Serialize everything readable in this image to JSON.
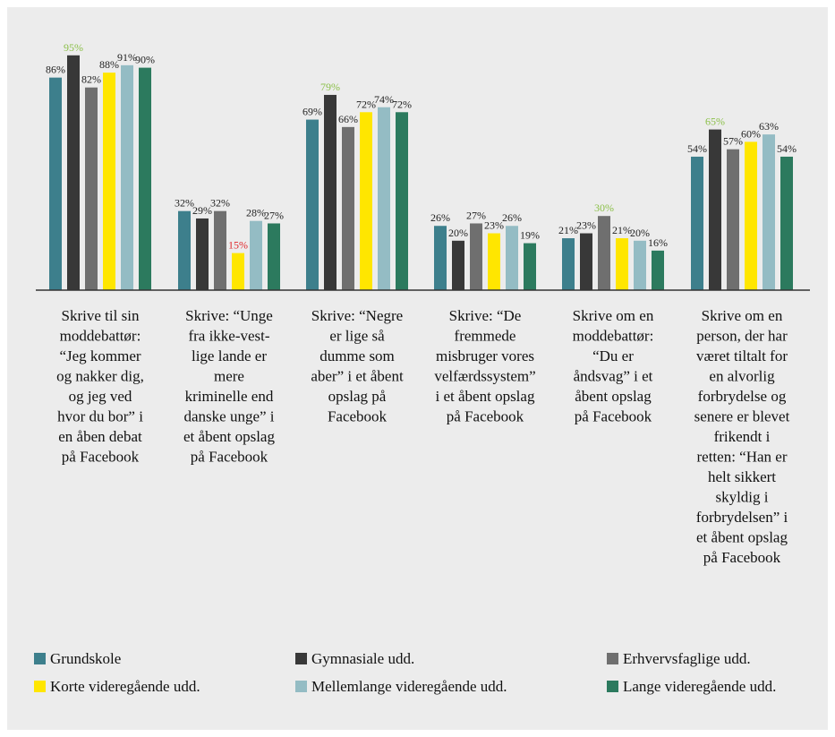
{
  "chart_data": {
    "type": "bar",
    "categories": [
      [
        "Skrive til sin",
        "moddebattør:",
        "“Jeg kommer",
        "og nakker dig,",
        "og jeg ved",
        "hvor du bor” i",
        "en åben debat",
        "på Facebook"
      ],
      [
        "Skrive: “Unge",
        "fra ikke-vest-",
        "lige lande er",
        "mere",
        "kriminelle end",
        "danske unge” i",
        "et åbent opslag",
        "på Facebook"
      ],
      [
        "Skrive: “Negre",
        "er lige  så",
        "dumme som",
        "aber” i et åbent",
        "opslag på",
        "Facebook"
      ],
      [
        "Skrive: “De",
        "fremmede",
        "misbruger vores",
        "velfærdssystem”",
        "i et åbent opslag",
        "på Facebook"
      ],
      [
        "Skrive om en",
        "moddebattør:",
        "“Du er",
        "åndsvag” i et",
        "åbent opslag",
        "på Facebook"
      ],
      [
        "Skrive om en",
        "person, der har",
        "været tiltalt for",
        "en alvorlig",
        "forbrydelse og",
        "senere er blevet",
        "frikendt i",
        "retten: “Han er",
        "helt sikkert",
        "skyldig i",
        "forbrydelsen” i",
        "et åbent opslag",
        "på Facebook"
      ]
    ],
    "series": [
      {
        "name": "Grundskole",
        "color": "#3d7f8c",
        "values": [
          86,
          32,
          69,
          26,
          21,
          54
        ]
      },
      {
        "name": "Gymnasiale udd.",
        "color": "#383838",
        "values": [
          95,
          29,
          79,
          20,
          23,
          65
        ]
      },
      {
        "name": "Erhvervsfaglige udd.",
        "color": "#6f6f6f",
        "values": [
          82,
          32,
          66,
          27,
          30,
          57
        ]
      },
      {
        "name": "Korte videregående udd.",
        "color": "#ffe600",
        "values": [
          88,
          15,
          72,
          23,
          21,
          60
        ]
      },
      {
        "name": "Mellemlange videregående udd.",
        "color": "#94bcc4",
        "values": [
          91,
          28,
          74,
          26,
          20,
          63
        ]
      },
      {
        "name": "Lange videregående udd.",
        "color": "#2c7a5e",
        "values": [
          90,
          27,
          72,
          19,
          16,
          54
        ]
      }
    ],
    "value_suffix": "%",
    "label_colors": {
      "default": "#222222",
      "highest": "#8cc04a",
      "lowest": "#e0282d"
    },
    "highlights": [
      {
        "category": 0,
        "series": 1,
        "kind": "highest"
      },
      {
        "category": 1,
        "series": 3,
        "kind": "lowest"
      },
      {
        "category": 2,
        "series": 1,
        "kind": "highest"
      },
      {
        "category": 4,
        "series": 2,
        "kind": "highest"
      },
      {
        "category": 5,
        "series": 1,
        "kind": "highest"
      }
    ],
    "ylim": [
      0,
      100
    ],
    "legend_position": "bottom",
    "grid": false
  }
}
